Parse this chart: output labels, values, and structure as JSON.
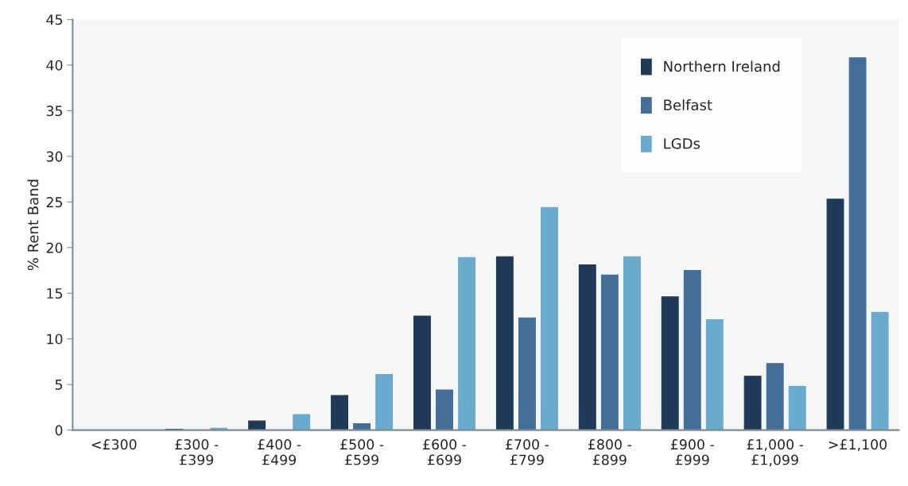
{
  "chart_data": {
    "type": "bar",
    "ylabel": "% Rent Band",
    "categories": [
      "<£300",
      "£300 -\n£399",
      "£400 -\n£499",
      "£500 -\n£599",
      "£600 -\n£699",
      "£700 -\n£799",
      "£800 -\n£899",
      "£900 -\n£999",
      "£1,000 -\n£1,099",
      ">£1,100"
    ],
    "series": [
      {
        "name": "Northern Ireland",
        "color": "#1f3a56",
        "values": [
          0,
          0.1,
          1.0,
          3.8,
          12.5,
          19.0,
          18.1,
          14.6,
          5.9,
          25.3
        ]
      },
      {
        "name": "Belfast",
        "color": "#456e96",
        "values": [
          0,
          0,
          0,
          0.7,
          4.4,
          12.3,
          17.0,
          17.5,
          7.3,
          40.8
        ]
      },
      {
        "name": "LGDs",
        "color": "#6aaacd",
        "values": [
          0,
          0.2,
          1.7,
          6.1,
          18.9,
          24.4,
          19.0,
          12.1,
          4.8,
          12.9
        ]
      }
    ],
    "ylim": [
      0,
      45
    ],
    "yticks": [
      0,
      5,
      10,
      15,
      20,
      25,
      30,
      35,
      40,
      45
    ],
    "grid": false,
    "legend": "top right"
  }
}
